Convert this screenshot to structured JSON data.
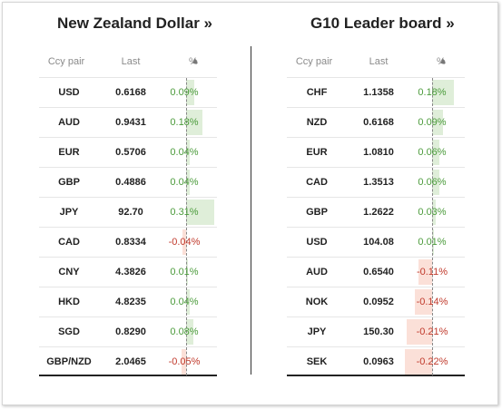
{
  "left": {
    "title": "New Zealand Dollar »",
    "headers": {
      "pair": "Ccy pair",
      "last": "Last",
      "pct": "%",
      "sort_icon": "▲"
    },
    "rows": [
      {
        "ccy": "USD",
        "last": "0.6168",
        "pct": "0.09%",
        "value": 0.09
      },
      {
        "ccy": "AUD",
        "last": "0.9431",
        "pct": "0.18%",
        "value": 0.18
      },
      {
        "ccy": "EUR",
        "last": "0.5706",
        "pct": "0.04%",
        "value": 0.04
      },
      {
        "ccy": "GBP",
        "last": "0.4886",
        "pct": "0.04%",
        "value": 0.04
      },
      {
        "ccy": "JPY",
        "last": "92.70",
        "pct": "0.31%",
        "value": 0.31
      },
      {
        "ccy": "CAD",
        "last": "0.8334",
        "pct": "-0.04%",
        "value": -0.04
      },
      {
        "ccy": "CNY",
        "last": "4.3826",
        "pct": "0.01%",
        "value": 0.01
      },
      {
        "ccy": "HKD",
        "last": "4.8235",
        "pct": "0.04%",
        "value": 0.04
      },
      {
        "ccy": "SGD",
        "last": "0.8290",
        "pct": "0.08%",
        "value": 0.08
      },
      {
        "ccy": "GBP/NZD",
        "last": "2.0465",
        "pct": "-0.05%",
        "value": -0.05
      }
    ]
  },
  "right": {
    "title": "G10 Leader board »",
    "headers": {
      "pair": "Ccy pair",
      "last": "Last",
      "pct": "%",
      "sort_icon": "▲"
    },
    "rows": [
      {
        "ccy": "CHF",
        "last": "1.1358",
        "pct": "0.18%",
        "value": 0.18
      },
      {
        "ccy": "NZD",
        "last": "0.6168",
        "pct": "0.09%",
        "value": 0.09
      },
      {
        "ccy": "EUR",
        "last": "1.0810",
        "pct": "0.06%",
        "value": 0.06
      },
      {
        "ccy": "CAD",
        "last": "1.3513",
        "pct": "0.06%",
        "value": 0.06
      },
      {
        "ccy": "GBP",
        "last": "1.2622",
        "pct": "0.03%",
        "value": 0.03
      },
      {
        "ccy": "USD",
        "last": "104.08",
        "pct": "0.01%",
        "value": 0.01
      },
      {
        "ccy": "AUD",
        "last": "0.6540",
        "pct": "-0.11%",
        "value": -0.11
      },
      {
        "ccy": "NOK",
        "last": "0.0952",
        "pct": "-0.14%",
        "value": -0.14
      },
      {
        "ccy": "JPY",
        "last": "150.30",
        "pct": "-0.21%",
        "value": -0.21
      },
      {
        "ccy": "SEK",
        "last": "0.0963",
        "pct": "-0.22%",
        "value": -0.22
      }
    ]
  },
  "colors": {
    "positive_text": "#4a9a3a",
    "negative_text": "#c0392b",
    "positive_bar": "#dfeed9",
    "negative_bar": "#fbe0d8"
  }
}
